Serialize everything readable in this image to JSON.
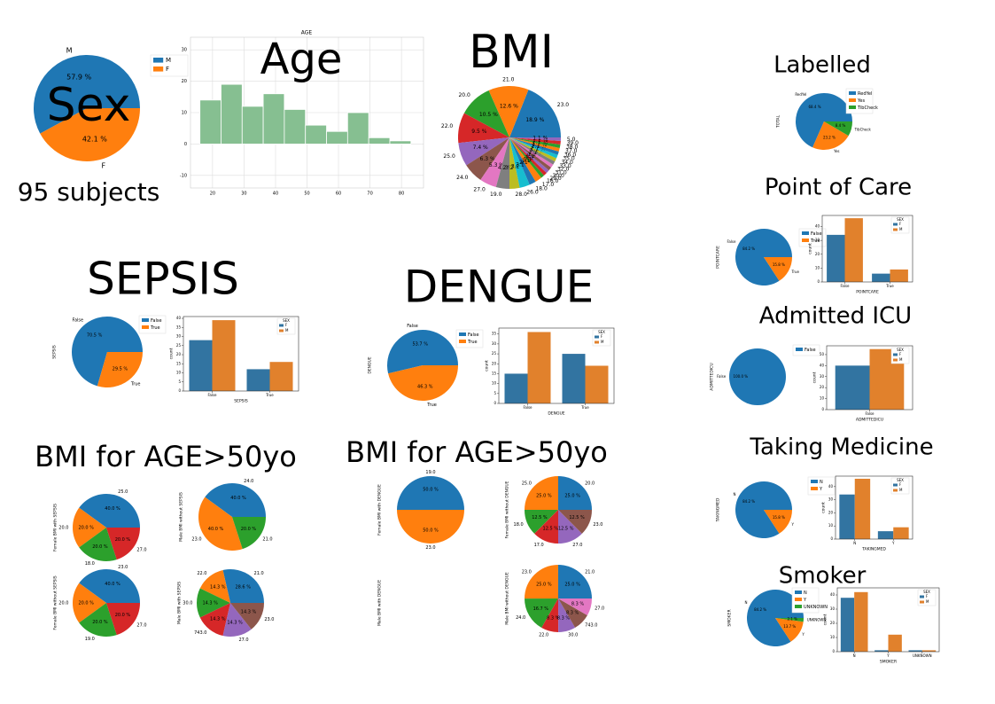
{
  "chart_data": [
    {
      "type": "pie",
      "title": "Sex",
      "subtitle": "95 subjects",
      "categories": [
        "M",
        "F"
      ],
      "values": [
        57.9,
        42.1
      ],
      "value_labels": [
        "57.9 %",
        "42.1 %"
      ],
      "colors": [
        "#1f77b4",
        "#ff7f0e"
      ],
      "legend": true
    },
    {
      "type": "histogram",
      "title": "Age",
      "subtitle": "AGE",
      "bins": [
        16,
        22.7,
        29.4,
        36.1,
        42.8,
        49.5,
        56.2,
        62.9,
        69.6,
        76.3,
        83
      ],
      "values": [
        14,
        19,
        12,
        16,
        11,
        6,
        4,
        10,
        2,
        1
      ],
      "color": "#86bf91",
      "xlim": [
        13,
        87
      ],
      "xticks": [
        20,
        30,
        40,
        50,
        60,
        70,
        80
      ],
      "ylim": [
        -14,
        34
      ],
      "yticks": [
        -10,
        0,
        10,
        20,
        30
      ],
      "grid": true
    },
    {
      "type": "pie",
      "title": "BMI",
      "categories": [
        "23.0",
        "21.0",
        "20.0",
        "22.0",
        "25.0",
        "24.0",
        "27.0",
        "19.0",
        "28.0",
        "26.0",
        "18.0",
        "17.0",
        "16.0",
        "29.0",
        "30.0",
        "31.0",
        "32.0",
        "33.0",
        "34.0",
        "35.0",
        "36.0",
        "37.0",
        "38.0",
        "39.0",
        "5.0"
      ],
      "values": [
        18.9,
        12.6,
        10.5,
        9.5,
        7.4,
        6.3,
        5.3,
        4.2,
        3.2,
        3.2,
        2.1,
        2.1,
        1.1,
        1.1,
        1.1,
        1.1,
        1.1,
        1.1,
        1.1,
        1.1,
        1.1,
        1.1,
        1.1,
        1.1,
        1.1
      ],
      "value_labels": [
        "18.9 %",
        "12.6 %",
        "10.5 %",
        "9.5 %",
        "7.4 %",
        "6.3 %",
        "5.3 %",
        "4.2 %",
        "3.2 %",
        "3.2 %",
        "2.1 %",
        "2.1 %",
        "1.1 %",
        "1.1 %",
        "1.1 %",
        "1.1 %",
        "1.1 %",
        "1.1 %",
        "1.1 %",
        "1.1 %",
        "1.1 %",
        "1.1 %",
        "1.1 %",
        "1.1 %",
        "1.1 %"
      ],
      "colors": [
        "#1f77b4",
        "#ff7f0e",
        "#2ca02c",
        "#d62728",
        "#9467bd",
        "#8c564b",
        "#e377c2",
        "#7f7f7f",
        "#bcbd22",
        "#17becf"
      ]
    },
    {
      "type": "pie",
      "title": "Labelled",
      "ylabel": "TOTAL",
      "categories": [
        "RedYel",
        "Yes",
        "TibCheck"
      ],
      "values": [
        68.4,
        23.2,
        8.4
      ],
      "value_labels": [
        "68.4 %",
        "23.2 %",
        "8.4 %"
      ],
      "colors": [
        "#1f77b4",
        "#ff7f0e",
        "#2ca02c"
      ],
      "legend": true
    },
    {
      "type": "pie",
      "title": "Point of Care",
      "ylabel": "POINTCARE",
      "categories": [
        "False",
        "True"
      ],
      "values": [
        84.2,
        15.8
      ],
      "value_labels": [
        "84.2 %",
        "15.8 %"
      ],
      "colors": [
        "#1f77b4",
        "#ff7f0e"
      ],
      "legend": true
    },
    {
      "type": "bar",
      "categories": [
        "False",
        "True"
      ],
      "series": [
        {
          "name": "F",
          "color": "#3274a1",
          "values": [
            34,
            6
          ]
        },
        {
          "name": "M",
          "color": "#e1812c",
          "values": [
            46,
            9
          ]
        }
      ],
      "legend_title": "SEX",
      "xlabel": "POINTCARE",
      "ylabel": "count",
      "ylim": [
        0,
        48
      ],
      "yticks": [
        0,
        10,
        20,
        30,
        40
      ]
    },
    {
      "type": "pie",
      "title": "Admitted ICU",
      "ylabel": "ADMITTEDICU",
      "categories": [
        "False"
      ],
      "values": [
        100.0
      ],
      "value_labels": [
        "100.0 %"
      ],
      "colors": [
        "#1f77b4"
      ],
      "legend": true
    },
    {
      "type": "bar",
      "categories": [
        "False"
      ],
      "series": [
        {
          "name": "F",
          "color": "#3274a1",
          "values": [
            40
          ]
        },
        {
          "name": "M",
          "color": "#e1812c",
          "values": [
            55
          ]
        }
      ],
      "legend_title": "SEX",
      "xlabel": "ADMITTEDICU",
      "ylabel": "count",
      "ylim": [
        0,
        58
      ],
      "yticks": [
        0,
        10,
        20,
        30,
        40,
        50
      ]
    },
    {
      "type": "pie",
      "title": "Taking Medicine",
      "ylabel": "TAKINGMED",
      "categories": [
        "N",
        "Y"
      ],
      "values": [
        84.2,
        15.8
      ],
      "value_labels": [
        "84.2 %",
        "15.8 %"
      ],
      "colors": [
        "#1f77b4",
        "#ff7f0e"
      ],
      "legend": true
    },
    {
      "type": "bar",
      "categories": [
        "N",
        "Y"
      ],
      "series": [
        {
          "name": "F",
          "color": "#3274a1",
          "values": [
            34,
            6
          ]
        },
        {
          "name": "M",
          "color": "#e1812c",
          "values": [
            46,
            9
          ]
        }
      ],
      "legend_title": "SEX",
      "xlabel": "TAKINGMED",
      "ylabel": "count",
      "ylim": [
        0,
        48
      ],
      "yticks": [
        0,
        10,
        20,
        30,
        40
      ]
    },
    {
      "type": "pie",
      "title": "Smoker",
      "ylabel": "SMOKER",
      "categories": [
        "N",
        "Y",
        "UNKNOWN"
      ],
      "values": [
        84.2,
        13.7,
        2.1
      ],
      "value_labels": [
        "84.2 %",
        "13.7 %",
        "2.1 %"
      ],
      "colors": [
        "#1f77b4",
        "#ff7f0e",
        "#2ca02c"
      ],
      "legend": true
    },
    {
      "type": "bar",
      "categories": [
        "N",
        "Y",
        "UNKNOWN"
      ],
      "series": [
        {
          "name": "F",
          "color": "#3274a1",
          "values": [
            38,
            1,
            1
          ]
        },
        {
          "name": "M",
          "color": "#e1812c",
          "values": [
            42,
            12,
            1
          ]
        }
      ],
      "legend_title": "SEX",
      "xlabel": "SMOKER",
      "ylabel": "count",
      "ylim": [
        0,
        45
      ],
      "yticks": [
        0,
        10,
        20,
        30,
        40
      ]
    },
    {
      "type": "pie",
      "title": "SEPSIS",
      "ylabel": "SEPSIS",
      "categories": [
        "False",
        "True"
      ],
      "values": [
        70.5,
        29.5
      ],
      "value_labels": [
        "70.5 %",
        "29.5 %"
      ],
      "colors": [
        "#1f77b4",
        "#ff7f0e"
      ],
      "legend": true
    },
    {
      "type": "bar",
      "categories": [
        "False",
        "True"
      ],
      "series": [
        {
          "name": "F",
          "color": "#3274a1",
          "values": [
            28,
            12
          ]
        },
        {
          "name": "M",
          "color": "#e1812c",
          "values": [
            39,
            16
          ]
        }
      ],
      "legend_title": "SEX",
      "xlabel": "SEPSIS",
      "ylabel": "count",
      "ylim": [
        0,
        41
      ],
      "yticks": [
        0,
        5,
        10,
        15,
        20,
        25,
        30,
        35,
        40
      ]
    },
    {
      "type": "pie",
      "title": "DENGUE",
      "ylabel": "DENGUE",
      "categories": [
        "False",
        "True"
      ],
      "values": [
        53.7,
        46.3
      ],
      "value_labels": [
        "53.7 %",
        "46.3 %"
      ],
      "colors": [
        "#1f77b4",
        "#ff7f0e"
      ],
      "legend": true
    },
    {
      "type": "bar",
      "categories": [
        "False",
        "True"
      ],
      "series": [
        {
          "name": "F",
          "color": "#3274a1",
          "values": [
            15,
            25
          ]
        },
        {
          "name": "M",
          "color": "#e1812c",
          "values": [
            36,
            19
          ]
        }
      ],
      "legend_title": "SEX",
      "xlabel": "DENGUE",
      "ylabel": "count",
      "ylim": [
        0,
        38
      ],
      "yticks": [
        0,
        5,
        10,
        15,
        20,
        25,
        30,
        35
      ]
    },
    {
      "type": "pie",
      "title": "BMI for AGE>50yo",
      "ylabel": "Female BMI with SEPSIS",
      "categories": [
        "25.0",
        "20.0",
        "18.0",
        "27.0"
      ],
      "values": [
        40.0,
        20.0,
        20.0,
        20.0
      ],
      "value_labels": [
        "40.0 %",
        "20.0 %",
        "20.0 %",
        "20.0 %"
      ],
      "colors": [
        "#1f77b4",
        "#ff7f0e",
        "#2ca02c",
        "#d62728"
      ]
    },
    {
      "type": "pie",
      "ylabel": "Male BMI without SEPSIS",
      "categories": [
        "24.0",
        "23.0",
        "21.0"
      ],
      "values": [
        40.0,
        40.0,
        20.0
      ],
      "value_labels": [
        "40.0 %",
        "40.0 %",
        "20.0 %"
      ],
      "colors": [
        "#1f77b4",
        "#ff7f0e",
        "#2ca02c"
      ]
    },
    {
      "type": "pie",
      "ylabel": "Female BMI without SEPSIS",
      "categories": [
        "23.0",
        "20.0",
        "19.0",
        "27.0"
      ],
      "values": [
        40.0,
        20.0,
        20.0,
        20.0
      ],
      "value_labels": [
        "40.0 %",
        "20.0 %",
        "20.0 %",
        "20.0 %"
      ],
      "colors": [
        "#1f77b4",
        "#ff7f0e",
        "#2ca02c",
        "#d62728"
      ]
    },
    {
      "type": "pie",
      "ylabel": "Male BMI with SEPSIS",
      "categories": [
        "21.0",
        "22.0",
        "30.0",
        "743.0",
        "27.0",
        "23.0"
      ],
      "values": [
        28.6,
        14.3,
        14.3,
        14.3,
        14.3,
        14.3
      ],
      "value_labels": [
        "28.6 %",
        "14.3 %",
        "14.3 %",
        "14.3 %",
        "14.3 %",
        "14.3 %"
      ],
      "colors": [
        "#1f77b4",
        "#ff7f0e",
        "#2ca02c",
        "#d62728",
        "#9467bd",
        "#8c564b"
      ]
    },
    {
      "type": "pie",
      "title": "BMI for AGE>50yo",
      "ylabel": "Female BMI with DENGUE",
      "categories": [
        "19.0",
        "23.0"
      ],
      "values": [
        50.0,
        50.0
      ],
      "value_labels": [
        "50.0 %",
        "50.0 %"
      ],
      "colors": [
        "#1f77b4",
        "#ff7f0e"
      ]
    },
    {
      "type": "pie",
      "ylabel": "Female BMI without DENGUE",
      "categories": [
        "20.0",
        "25.0",
        "18.0",
        "17.0",
        "27.0",
        "23.0"
      ],
      "values": [
        25.0,
        25.0,
        12.5,
        12.5,
        12.5,
        12.5
      ],
      "value_labels": [
        "25.0 %",
        "25.0 %",
        "12.5 %",
        "12.5 %",
        "12.5 %",
        "12.5 %"
      ],
      "colors": [
        "#1f77b4",
        "#ff7f0e",
        "#2ca02c",
        "#d62728",
        "#9467bd",
        "#8c564b"
      ]
    },
    {
      "type": "pie",
      "ylabel": "Male BMI with DENGUE",
      "categories": [],
      "values": [],
      "value_labels": [],
      "colors": [
        "#1f77b4"
      ]
    },
    {
      "type": "pie",
      "ylabel": "Male BMI without DENGUE",
      "categories": [
        "21.0",
        "23.0",
        "24.0",
        "22.0",
        "30.0",
        "743.0",
        "27.0"
      ],
      "values": [
        25.0,
        25.0,
        16.7,
        8.3,
        8.3,
        8.3,
        8.3
      ],
      "value_labels": [
        "25.0 %",
        "25.0 %",
        "16.7 %",
        "8.3 %",
        "8.3 %",
        "8.3 %",
        "8.3 %"
      ],
      "colors": [
        "#1f77b4",
        "#ff7f0e",
        "#2ca02c",
        "#d62728",
        "#9467bd",
        "#8c564b",
        "#e377c2"
      ]
    }
  ]
}
